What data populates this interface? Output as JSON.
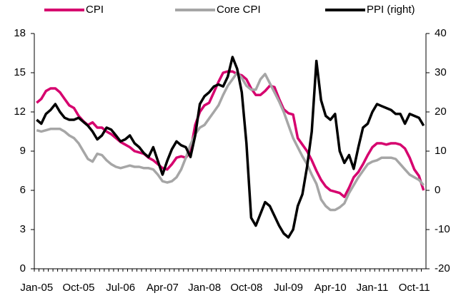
{
  "chart_data": {
    "type": "line",
    "categories": [
      "Jan-05",
      null,
      null,
      null,
      null,
      null,
      null,
      null,
      null,
      "Oct-05",
      null,
      null,
      null,
      null,
      null,
      null,
      null,
      null,
      "Jul-06",
      null,
      null,
      null,
      null,
      null,
      null,
      null,
      null,
      "Apr-07",
      null,
      null,
      null,
      null,
      null,
      null,
      null,
      null,
      "Jan-08",
      null,
      null,
      null,
      null,
      null,
      null,
      null,
      null,
      "Oct-08",
      null,
      null,
      null,
      null,
      null,
      null,
      null,
      null,
      "Jul-09",
      null,
      null,
      null,
      null,
      null,
      null,
      null,
      null,
      "Apr-10",
      null,
      null,
      null,
      null,
      null,
      null,
      null,
      null,
      "Jan-11",
      null,
      null,
      null,
      null,
      null,
      null,
      null,
      null,
      "Oct-11",
      null,
      null
    ],
    "series": [
      {
        "name": "CPI",
        "color": "#d6006e",
        "values": [
          12.7,
          13,
          13.6,
          13.8,
          13.8,
          13.5,
          13,
          12.5,
          12.3,
          11.7,
          11.3,
          11.0,
          11.2,
          10.8,
          10.8,
          10.5,
          10.3,
          10,
          9.7,
          9.5,
          9.3,
          9,
          8.9,
          8.8,
          8.5,
          8.3,
          8,
          7.7,
          7.6,
          8,
          8.5,
          8.6,
          8.5,
          9,
          11,
          12,
          12.5,
          12.7,
          13.5,
          14.3,
          15,
          15.1,
          15.1,
          14.9,
          14.8,
          14.5,
          13.8,
          13.3,
          13.3,
          13.6,
          14,
          13.9,
          13,
          12.2,
          11.9,
          11.8,
          10,
          9.5,
          9,
          8.3,
          7.5,
          6.8,
          6.3,
          6,
          5.9,
          5.8,
          5.5,
          6.2,
          7,
          7.4,
          8,
          8.7,
          9.3,
          9.6,
          9.6,
          9.5,
          9.6,
          9.6,
          9.5,
          9.2,
          8.5,
          7.6,
          7.1,
          6.0
        ]
      },
      {
        "name": "Core CPI",
        "color": "#a6a6a6",
        "values": [
          10.6,
          10.5,
          10.6,
          10.7,
          10.7,
          10.7,
          10.5,
          10.2,
          10,
          9.6,
          9,
          8.4,
          8.2,
          8.8,
          8.7,
          8.3,
          8,
          7.8,
          7.7,
          7.8,
          7.9,
          7.8,
          7.8,
          7.7,
          7.7,
          7.6,
          7.2,
          6.7,
          6.6,
          6.7,
          7,
          7.6,
          8.5,
          9.5,
          10.3,
          10.8,
          11,
          11.5,
          12,
          12.5,
          13.3,
          14,
          14.5,
          15,
          14.6,
          14,
          13.7,
          13.7,
          14.5,
          14.9,
          14.2,
          13.5,
          12.8,
          12,
          11,
          10,
          9.3,
          8.6,
          8,
          7.2,
          6.5,
          5.3,
          4.8,
          4.5,
          4.5,
          4.7,
          5,
          5.8,
          6.4,
          7,
          7.5,
          8,
          8.2,
          8.3,
          8.5,
          8.5,
          8.5,
          8.4,
          8,
          7.6,
          7.2,
          7,
          6.8,
          6.4
        ]
      },
      {
        "name": "PPI (right)",
        "color": "#000000",
        "axis": "y2",
        "values": [
          18,
          17,
          19.5,
          20.5,
          22,
          20,
          18.5,
          18,
          18,
          18.5,
          17.5,
          16.5,
          15,
          13,
          14,
          16,
          15.5,
          14,
          12.5,
          13,
          14,
          12,
          11,
          9.5,
          8.5,
          11,
          7.5,
          4,
          7.5,
          10.5,
          12.5,
          11.5,
          11,
          8.5,
          14,
          22,
          24,
          25,
          26.5,
          27,
          26.5,
          29,
          34,
          31,
          25,
          12,
          -7,
          -9,
          -6,
          -3,
          -4,
          -6.5,
          -9,
          -11,
          -12,
          -10,
          -4,
          -1,
          6,
          15,
          33,
          23,
          19,
          18,
          19.5,
          10,
          7,
          9,
          5.5,
          11,
          16,
          17,
          20,
          22,
          21.5,
          21,
          20.5,
          19.5,
          19.5,
          17,
          19.5,
          19,
          18.5,
          16.5
        ]
      }
    ],
    "ylim": [
      0,
      18
    ],
    "yticks": [
      0,
      3,
      6,
      9,
      12,
      15,
      18
    ],
    "y2lim": [
      -20,
      40
    ],
    "y2ticks": [
      -20,
      -10,
      0,
      10,
      20,
      30,
      40
    ],
    "legend": "top"
  }
}
